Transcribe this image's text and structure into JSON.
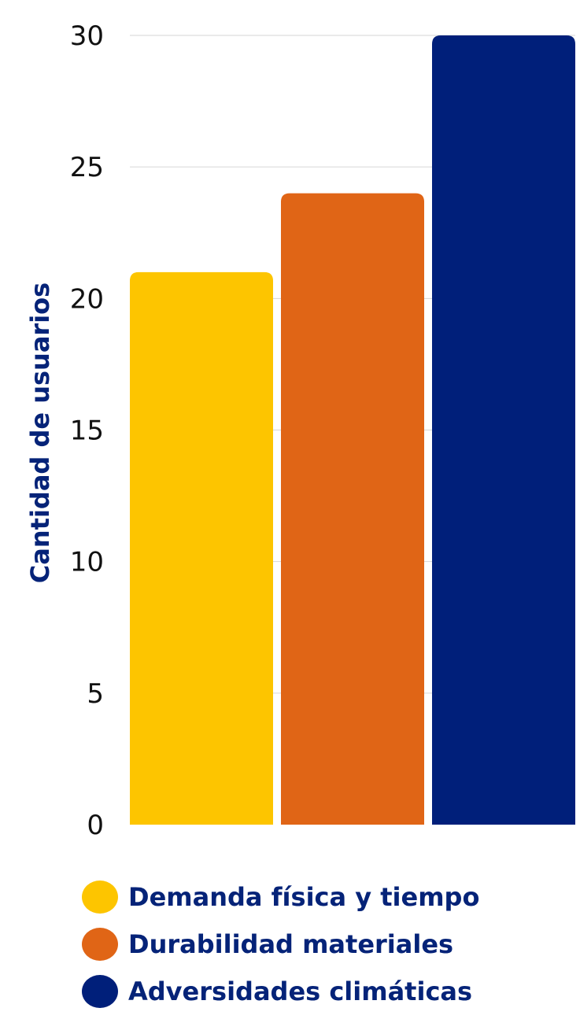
{
  "chart_data": {
    "type": "bar",
    "ylabel": "Cantidad de usuarios",
    "ylim": [
      0,
      30
    ],
    "yticks": [
      "0",
      "5",
      "10",
      "15",
      "20",
      "25",
      "30"
    ],
    "grid": true,
    "legend_position": "bottom",
    "series": [
      {
        "name": "Demanda física y tiempo",
        "value": 21,
        "color": "#FDC500"
      },
      {
        "name": "Durabilidad materiales",
        "value": 24,
        "color": "#E06516"
      },
      {
        "name": "Adversidades climáticas",
        "value": 30,
        "color": "#001F7A"
      }
    ]
  }
}
